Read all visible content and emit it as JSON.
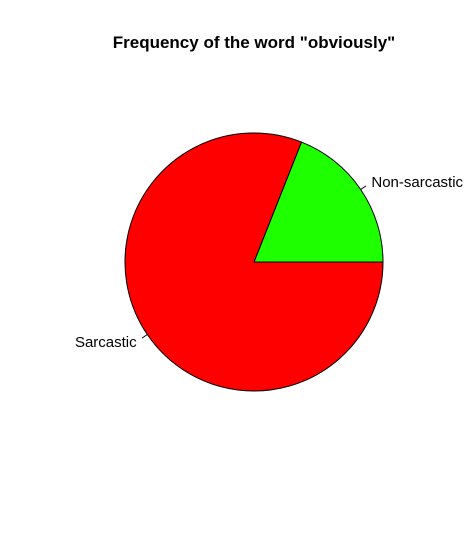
{
  "chart_data": {
    "type": "pie",
    "title": "Frequency of the word \"obviously\"",
    "slices": [
      {
        "label": "Non-sarcastic",
        "value": 19,
        "color": "#1EFF00"
      },
      {
        "label": "Sarcastic",
        "value": 81,
        "color": "#FF0000"
      }
    ],
    "direction": "counterclockwise",
    "start": "3 o'clock",
    "legend": "none"
  }
}
